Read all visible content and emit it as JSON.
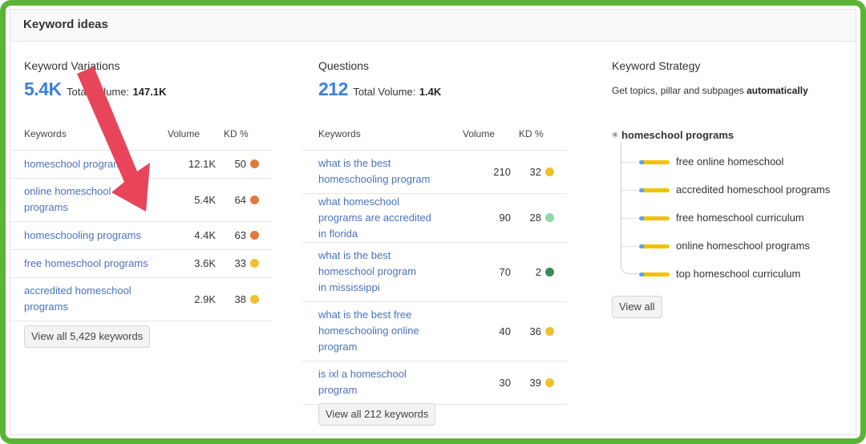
{
  "panel": {
    "title": "Keyword ideas"
  },
  "variations": {
    "title": "Keyword Variations",
    "count": "5.4K",
    "volume_label": "Total Volume:",
    "volume_value": "147.1K",
    "headers": {
      "keyword": "Keywords",
      "volume": "Volume",
      "kd": "KD %"
    },
    "rows": [
      {
        "keyword": "homeschool programs",
        "volume": "12.1K",
        "kd": "50",
        "kd_color": "#e07b39"
      },
      {
        "keyword": "online homeschool programs",
        "volume": "5.4K",
        "kd": "64",
        "kd_color": "#e07b39"
      },
      {
        "keyword": "homeschooling programs",
        "volume": "4.4K",
        "kd": "63",
        "kd_color": "#e07b39"
      },
      {
        "keyword": "free homeschool programs",
        "volume": "3.6K",
        "kd": "33",
        "kd_color": "#f0c02e"
      },
      {
        "keyword": "accredited homeschool programs",
        "volume": "2.9K",
        "kd": "38",
        "kd_color": "#f0c02e"
      }
    ],
    "view_all": "View all 5,429 keywords"
  },
  "questions": {
    "title": "Questions",
    "count": "212",
    "volume_label": "Total Volume:",
    "volume_value": "1.4K",
    "headers": {
      "keyword": "Keywords",
      "volume": "Volume",
      "kd": "KD %"
    },
    "rows": [
      {
        "keyword": "what is the best homeschooling program",
        "volume": "210",
        "kd": "32",
        "kd_color": "#f0c02e"
      },
      {
        "keyword": "what homeschool programs are accredited in florida",
        "volume": "90",
        "kd": "28",
        "kd_color": "#8fd9a8"
      },
      {
        "keyword": "what is the best homeschool program in mississippi",
        "volume": "70",
        "kd": "2",
        "kd_color": "#3a8a5e"
      },
      {
        "keyword": "what is the best free homeschooling online program",
        "volume": "40",
        "kd": "36",
        "kd_color": "#f0c02e"
      },
      {
        "keyword": "is ixl a homeschool program",
        "volume": "30",
        "kd": "39",
        "kd_color": "#f0c02e"
      }
    ],
    "view_all": "View all 212 keywords"
  },
  "strategy": {
    "title": "Keyword Strategy",
    "desc_prefix": "Get topics, pillar and subpages ",
    "desc_bold": "automatically",
    "root": "homeschool programs",
    "items": [
      "free online homeschool",
      "accredited homeschool programs",
      "free homeschool curriculum",
      "online homeschool programs",
      "top homeschool curriculum"
    ],
    "view_all": "View all"
  },
  "annotation": {
    "arrow_color": "#e8455a"
  }
}
